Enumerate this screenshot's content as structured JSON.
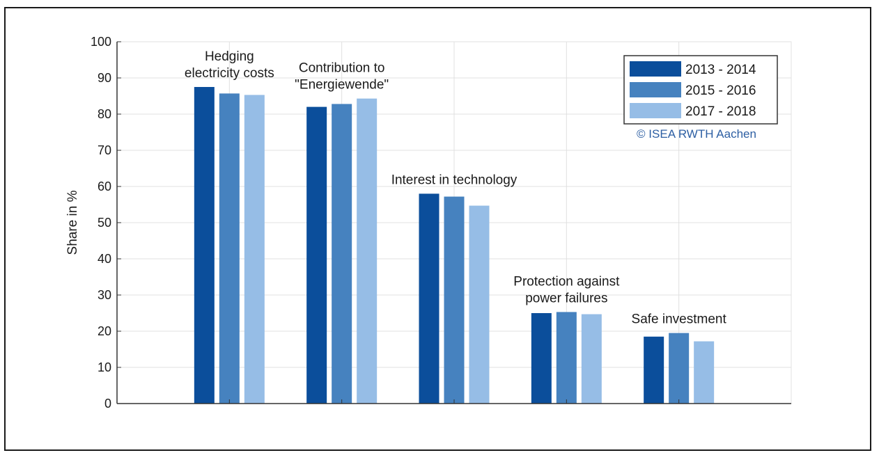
{
  "chart_data": {
    "type": "bar",
    "ylabel": "Share in %",
    "ylim": [
      0,
      100
    ],
    "yticks": [
      0,
      10,
      20,
      30,
      40,
      50,
      60,
      70,
      80,
      90,
      100
    ],
    "grid": true,
    "categories": [
      [
        "Hedging",
        "electricity costs"
      ],
      [
        "Contribution to",
        "\"Energiewende\""
      ],
      [
        "Interest in technology"
      ],
      [
        "Protection against",
        "power failures"
      ],
      [
        "Safe investment"
      ]
    ],
    "series": [
      {
        "name": "2013 - 2014",
        "color": "#0b4e9b",
        "values": [
          87.5,
          82,
          58,
          25,
          18.5
        ]
      },
      {
        "name": "2015 - 2016",
        "color": "#4682bf",
        "values": [
          85.7,
          82.8,
          57.2,
          25.3,
          19.5
        ]
      },
      {
        "name": "2017 - 2018",
        "color": "#96bde6",
        "values": [
          85.3,
          84.3,
          54.7,
          24.7,
          17.2
        ]
      }
    ],
    "legend_position": "top-right",
    "copyright": "© ISEA RWTH Aachen"
  }
}
